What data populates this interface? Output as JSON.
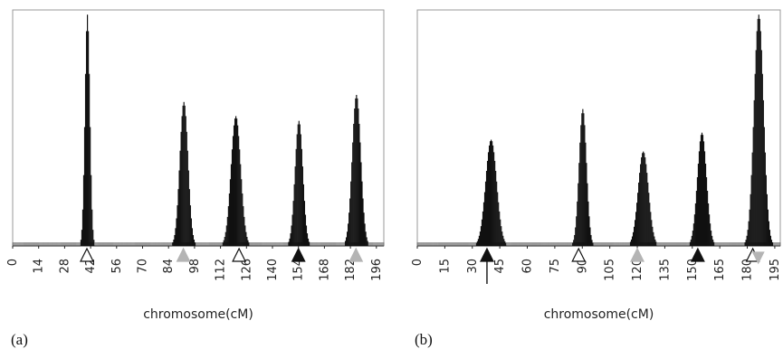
{
  "chart_data": [
    {
      "type": "bar",
      "panel_label": "(a)",
      "xlabel": "chromosome(cM)",
      "ylabel": "",
      "title": "",
      "x_ticks": [
        0,
        14,
        28,
        42,
        56,
        70,
        84,
        98,
        112,
        126,
        140,
        154,
        168,
        182,
        196
      ],
      "xlim": [
        0,
        200
      ],
      "ylim": [
        0,
        1.0
      ],
      "grid": false,
      "legend": "none",
      "peaks": [
        {
          "center": 40,
          "height": 0.98,
          "width": 1.3
        },
        {
          "center": 92,
          "height": 0.61,
          "width": 2.2
        },
        {
          "center": 120,
          "height": 0.55,
          "width": 2.6
        },
        {
          "center": 154,
          "height": 0.53,
          "width": 2.1
        },
        {
          "center": 185,
          "height": 0.64,
          "width": 2.3
        }
      ],
      "markers": [
        {
          "x": 40,
          "style": "open-up"
        },
        {
          "x": 92,
          "style": "gray-up"
        },
        {
          "x": 122,
          "style": "open-up"
        },
        {
          "x": 154,
          "style": "black-up"
        },
        {
          "x": 185,
          "style": "gray-up"
        }
      ],
      "colors": {
        "bars": "#111111",
        "frame": "#9a9a9a",
        "gray_marker": "#b4b4b4"
      }
    },
    {
      "type": "bar",
      "panel_label": "(b)",
      "xlabel": "chromosome(cM)",
      "ylabel": "",
      "title": "",
      "x_ticks": [
        0,
        15,
        30,
        45,
        60,
        75,
        90,
        105,
        120,
        135,
        150,
        165,
        180,
        195
      ],
      "xlim": [
        0,
        198
      ],
      "ylim": [
        0,
        1.0
      ],
      "grid": false,
      "legend": "none",
      "peaks": [
        {
          "center": 40,
          "height": 0.45,
          "width": 3.0
        },
        {
          "center": 90,
          "height": 0.58,
          "width": 2.0
        },
        {
          "center": 123,
          "height": 0.4,
          "width": 2.8
        },
        {
          "center": 155,
          "height": 0.48,
          "width": 2.5
        },
        {
          "center": 186,
          "height": 0.98,
          "width": 2.6
        }
      ],
      "markers": [
        {
          "x": 38,
          "style": "black-up-stem"
        },
        {
          "x": 88,
          "style": "open-up"
        },
        {
          "x": 120,
          "style": "gray-up"
        },
        {
          "x": 153,
          "style": "black-up"
        },
        {
          "x": 183,
          "style": "open-up"
        },
        {
          "x": 186,
          "style": "gray-down"
        }
      ],
      "colors": {
        "bars": "#111111",
        "frame": "#9a9a9a",
        "gray_marker": "#b4b4b4"
      }
    }
  ]
}
